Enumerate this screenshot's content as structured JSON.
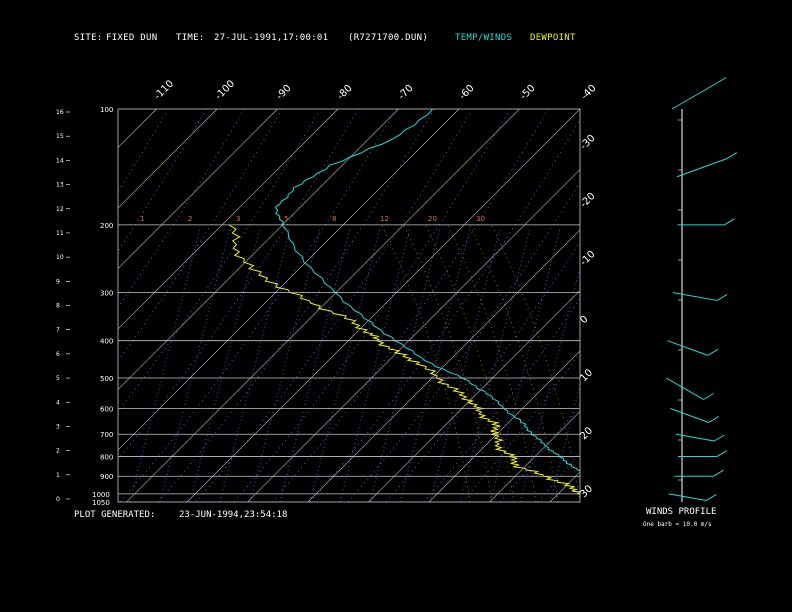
{
  "header": {
    "site_label": "SITE:",
    "site_value": "FIXED DUN",
    "time_label": "TIME:",
    "time_value": "27-JUL-1991,17:00:01",
    "file": "(R7271700.DUN)",
    "legend_temp": "TEMP/WINDS",
    "legend_dew": "DEWPOINT"
  },
  "footer": {
    "generated_label": "PLOT GENERATED:",
    "generated_value": "23-JUN-1994,23:54:18",
    "winds_title": "WINDS PROFILE",
    "winds_note": "One barb = 10.0 m/s"
  },
  "colors": {
    "temp": "#22d8d8",
    "dew": "#f0f020",
    "grid": "#c8c8c8",
    "mixing": "#5078ff",
    "adiabat": "#d87040"
  },
  "chart_data": {
    "type": "line",
    "title": "",
    "pressure_levels": [
      100,
      200,
      300,
      400,
      500,
      600,
      700,
      800,
      900,
      1000,
      1050
    ],
    "height_ticks_km": [
      0,
      1,
      2,
      3,
      4,
      5,
      6,
      7,
      8,
      9,
      10,
      11,
      12,
      13,
      14,
      15,
      16
    ],
    "top_temp_ticks": [
      -110,
      -100,
      -90,
      -80,
      -70,
      -60,
      -50,
      -40
    ],
    "right_temp_ticks": [
      -30,
      -20,
      -10,
      0,
      10,
      20,
      30
    ],
    "mixing_ratio_labels": [
      "1",
      "2",
      "3",
      "5",
      "8",
      "12",
      "20",
      "30"
    ],
    "series": [
      {
        "name": "TEMP/WINDS",
        "points": [
          [
            100,
            -64
          ],
          [
            120,
            -66
          ],
          [
            140,
            -72
          ],
          [
            160,
            -74
          ],
          [
            180,
            -74
          ],
          [
            200,
            -70
          ],
          [
            250,
            -60
          ],
          [
            300,
            -50
          ],
          [
            350,
            -41
          ],
          [
            400,
            -32
          ],
          [
            450,
            -24
          ],
          [
            500,
            -15
          ],
          [
            550,
            -8
          ],
          [
            600,
            -3
          ],
          [
            650,
            2
          ],
          [
            700,
            6
          ],
          [
            750,
            10
          ],
          [
            800,
            14
          ],
          [
            850,
            18
          ],
          [
            900,
            22
          ],
          [
            950,
            26
          ],
          [
            1000,
            30
          ],
          [
            1040,
            33
          ]
        ]
      },
      {
        "name": "DEWPOINT",
        "points": [
          [
            200,
            -78
          ],
          [
            230,
            -74
          ],
          [
            260,
            -68
          ],
          [
            290,
            -60
          ],
          [
            320,
            -52
          ],
          [
            350,
            -44
          ],
          [
            380,
            -38
          ],
          [
            400,
            -35
          ],
          [
            430,
            -30
          ],
          [
            460,
            -24
          ],
          [
            500,
            -19
          ],
          [
            540,
            -14
          ],
          [
            580,
            -9
          ],
          [
            620,
            -6
          ],
          [
            660,
            -2
          ],
          [
            700,
            0
          ],
          [
            750,
            2
          ],
          [
            800,
            6
          ],
          [
            850,
            9
          ],
          [
            900,
            15
          ],
          [
            950,
            20
          ],
          [
            1000,
            24
          ],
          [
            1040,
            28
          ]
        ]
      }
    ],
    "winds": [
      {
        "p": 100,
        "dir": 300,
        "spd": 40
      },
      {
        "p": 150,
        "dir": 290,
        "spd": 45
      },
      {
        "p": 200,
        "dir": 270,
        "spd": 30
      },
      {
        "p": 300,
        "dir": 260,
        "spd": 25
      },
      {
        "p": 400,
        "dir": 250,
        "spd": 20
      },
      {
        "p": 500,
        "dir": 240,
        "spd": 20
      },
      {
        "p": 600,
        "dir": 250,
        "spd": 15
      },
      {
        "p": 700,
        "dir": 260,
        "spd": 10
      },
      {
        "p": 800,
        "dir": 270,
        "spd": 10
      },
      {
        "p": 900,
        "dir": 270,
        "spd": 10
      },
      {
        "p": 1000,
        "dir": 260,
        "spd": 8
      }
    ]
  }
}
